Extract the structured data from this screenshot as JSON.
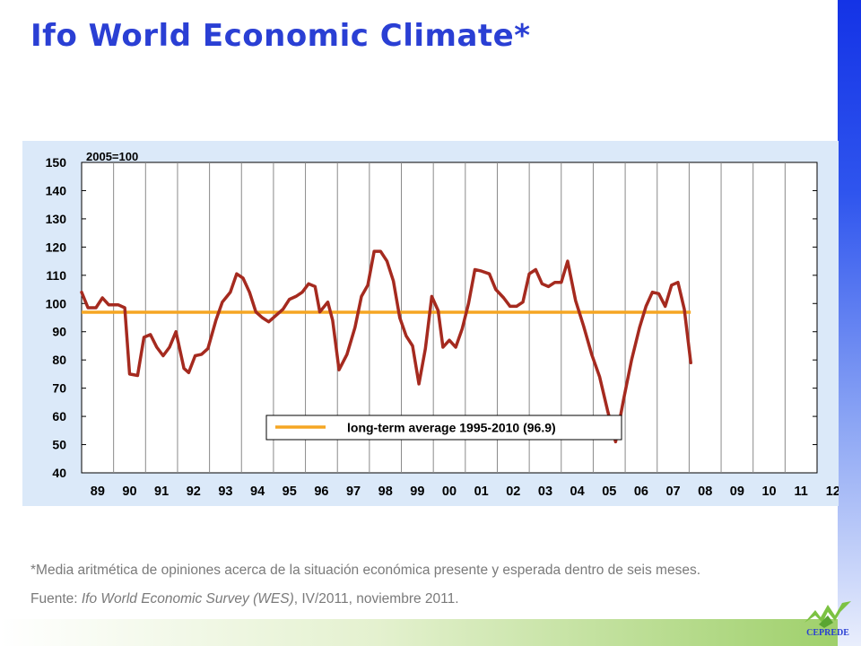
{
  "title": "Ifo World Economic Climate*",
  "footnote": "*Media  aritmética de opiniones acerca de la situación económica presente y esperada dentro de seis meses.",
  "source": {
    "prefix": "Fuente: ",
    "publication": "Ifo World Economic Survey (WES)",
    "suffix": ", IV/2011, noviembre 2011."
  },
  "logo": {
    "text": "CEPREDE",
    "icon": "ceprede-logo-icon"
  },
  "colors": {
    "title": "#2a3fd4",
    "series": "#a52a1f",
    "average": "#f5a623",
    "panel": "#dbe9f9",
    "right_bar": "#1f3de8",
    "bottom_band": "#9fd06b"
  },
  "chart_data": {
    "type": "line",
    "title": "",
    "index_note": "2005=100",
    "xlabel": "",
    "ylabel": "",
    "ylim": [
      40,
      150
    ],
    "yticks": [
      40,
      50,
      60,
      70,
      80,
      90,
      100,
      110,
      120,
      130,
      140,
      150
    ],
    "xlim": [
      1989,
      2012
    ],
    "categories": [
      "89",
      "90",
      "91",
      "92",
      "93",
      "94",
      "95",
      "96",
      "97",
      "98",
      "99",
      "00",
      "01",
      "02",
      "03",
      "04",
      "05",
      "06",
      "07",
      "08",
      "09",
      "10",
      "11",
      "12"
    ],
    "grid": "vertical",
    "legend_position": "bottom-center",
    "series": [
      {
        "name": "",
        "style": "line",
        "points": [
          [
            1989.0,
            104
          ],
          [
            1989.2,
            98.5
          ],
          [
            1989.45,
            98.5
          ],
          [
            1989.65,
            102
          ],
          [
            1989.85,
            99.5
          ],
          [
            1990.15,
            99.5
          ],
          [
            1990.35,
            98.5
          ],
          [
            1990.5,
            75
          ],
          [
            1990.75,
            74.5
          ],
          [
            1990.95,
            88
          ],
          [
            1991.15,
            89
          ],
          [
            1991.35,
            84.5
          ],
          [
            1991.55,
            81.5
          ],
          [
            1991.75,
            84.5
          ],
          [
            1991.95,
            90
          ],
          [
            1992.2,
            77
          ],
          [
            1992.35,
            75.5
          ],
          [
            1992.55,
            81.5
          ],
          [
            1992.75,
            82
          ],
          [
            1992.95,
            84
          ],
          [
            1993.2,
            94
          ],
          [
            1993.4,
            100.5
          ],
          [
            1993.65,
            104
          ],
          [
            1993.85,
            110.5
          ],
          [
            1994.05,
            109
          ],
          [
            1994.25,
            104
          ],
          [
            1994.45,
            97
          ],
          [
            1994.65,
            95
          ],
          [
            1994.85,
            93.5
          ],
          [
            1995.05,
            95.5
          ],
          [
            1995.3,
            98
          ],
          [
            1995.5,
            101.5
          ],
          [
            1995.7,
            102.5
          ],
          [
            1995.9,
            104
          ],
          [
            1996.1,
            107
          ],
          [
            1996.3,
            106
          ],
          [
            1996.45,
            97
          ],
          [
            1996.7,
            100.5
          ],
          [
            1996.85,
            94
          ],
          [
            1997.05,
            76.5
          ],
          [
            1997.3,
            82
          ],
          [
            1997.55,
            91.5
          ],
          [
            1997.75,
            102.5
          ],
          [
            1997.95,
            106.5
          ],
          [
            1998.15,
            118.5
          ],
          [
            1998.35,
            118.5
          ],
          [
            1998.55,
            115
          ],
          [
            1998.75,
            108
          ],
          [
            1998.95,
            95
          ],
          [
            1999.15,
            88.5
          ],
          [
            1999.35,
            85
          ],
          [
            1999.55,
            71.5
          ],
          [
            1999.75,
            84
          ],
          [
            1999.95,
            102.5
          ],
          [
            2000.15,
            97.5
          ],
          [
            2000.3,
            84.5
          ],
          [
            2000.5,
            87
          ],
          [
            2000.7,
            84.5
          ],
          [
            2000.9,
            91
          ],
          [
            2001.1,
            100
          ],
          [
            2001.3,
            112
          ],
          [
            2001.5,
            111.5
          ],
          [
            2001.75,
            110.5
          ],
          [
            2001.95,
            105
          ],
          [
            2002.2,
            102
          ],
          [
            2002.4,
            99
          ],
          [
            2002.6,
            99
          ],
          [
            2002.8,
            100.5
          ],
          [
            2003.0,
            110.5
          ],
          [
            2003.2,
            112
          ],
          [
            2003.4,
            107
          ],
          [
            2003.6,
            106
          ],
          [
            2003.8,
            107.5
          ],
          [
            2004.0,
            107.5
          ],
          [
            2004.2,
            115
          ],
          [
            2004.45,
            101
          ],
          [
            2004.7,
            92
          ],
          [
            2004.95,
            82
          ],
          [
            2005.2,
            74
          ],
          [
            2005.45,
            62
          ],
          [
            2005.7,
            51
          ],
          [
            2005.95,
            66
          ],
          [
            2006.2,
            80
          ],
          [
            2006.45,
            91.5
          ],
          [
            2006.65,
            99
          ],
          [
            2006.85,
            104
          ],
          [
            2007.05,
            103.5
          ],
          [
            2007.25,
            99
          ],
          [
            2007.45,
            106.5
          ],
          [
            2007.65,
            107.5
          ],
          [
            2007.85,
            98
          ],
          [
            2008.05,
            79
          ]
        ]
      },
      {
        "name": "long-term average 1995-2010 (96.9)",
        "style": "average",
        "points": [
          [
            1989.0,
            96.9
          ],
          [
            2008.05,
            96.9
          ]
        ]
      }
    ]
  }
}
